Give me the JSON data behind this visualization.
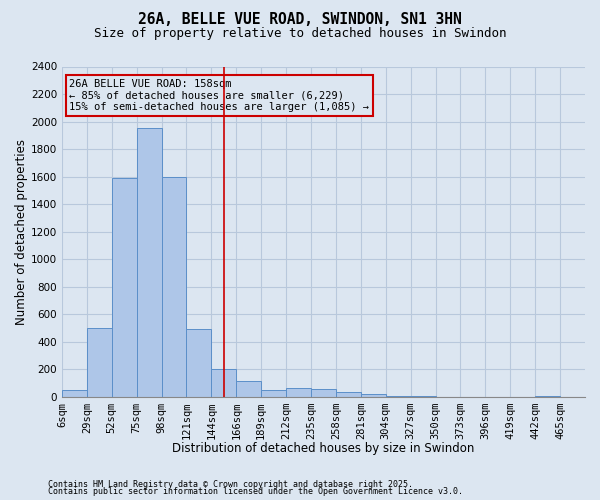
{
  "title": "26A, BELLE VUE ROAD, SWINDON, SN1 3HN",
  "subtitle": "Size of property relative to detached houses in Swindon",
  "xlabel": "Distribution of detached houses by size in Swindon",
  "ylabel": "Number of detached properties",
  "footnote1": "Contains HM Land Registry data © Crown copyright and database right 2025.",
  "footnote2": "Contains public sector information licensed under the Open Government Licence v3.0.",
  "bin_labels": [
    "6sqm",
    "29sqm",
    "52sqm",
    "75sqm",
    "98sqm",
    "121sqm",
    "144sqm",
    "166sqm",
    "189sqm",
    "212sqm",
    "235sqm",
    "258sqm",
    "281sqm",
    "304sqm",
    "327sqm",
    "350sqm",
    "373sqm",
    "396sqm",
    "419sqm",
    "442sqm",
    "465sqm"
  ],
  "bar_heights": [
    50,
    500,
    1590,
    1950,
    1600,
    490,
    200,
    115,
    50,
    65,
    55,
    35,
    20,
    5,
    5,
    0,
    0,
    0,
    0,
    5,
    0
  ],
  "bar_color": "#aec6e8",
  "bar_edge_color": "#5b8fc9",
  "grid_color": "#b8c8dc",
  "background_color": "#dce6f1",
  "ref_line_bin": 6.5,
  "ref_line_color": "#cc0000",
  "annotation_text": "26A BELLE VUE ROAD: 158sqm\n← 85% of detached houses are smaller (6,229)\n15% of semi-detached houses are larger (1,085) →",
  "annotation_box_color": "#cc0000",
  "ylim": [
    0,
    2400
  ],
  "yticks": [
    0,
    200,
    400,
    600,
    800,
    1000,
    1200,
    1400,
    1600,
    1800,
    2000,
    2200,
    2400
  ],
  "title_fontsize": 10.5,
  "subtitle_fontsize": 9,
  "tick_fontsize": 7.5,
  "ylabel_fontsize": 8.5,
  "xlabel_fontsize": 8.5,
  "footnote_fontsize": 6.0
}
